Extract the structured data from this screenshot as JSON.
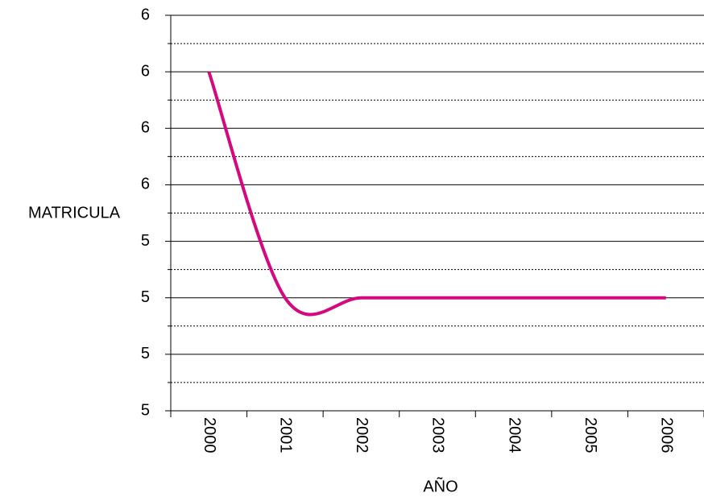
{
  "chart_data": {
    "type": "line",
    "x_label": "AÑO",
    "y_label": "MATRICULA",
    "categories": [
      "2000",
      "2001",
      "2002",
      "2003",
      "2004",
      "2005",
      "2006"
    ],
    "series": [
      {
        "name": "MATRICULA",
        "color": "#d6087f",
        "values": [
          6,
          5,
          5,
          5,
          5,
          5,
          5
        ]
      }
    ],
    "ylim": [
      4.5,
      6.25
    ],
    "yticks": [
      {
        "value": 4.5,
        "label": "5"
      },
      {
        "value": 4.75,
        "label": "5"
      },
      {
        "value": 5,
        "label": "5"
      },
      {
        "value": 5.25,
        "label": "5"
      },
      {
        "value": 5.5,
        "label": "6"
      },
      {
        "value": 5.75,
        "label": "6"
      },
      {
        "value": 6,
        "label": "6"
      },
      {
        "value": 6.25,
        "label": "6"
      }
    ],
    "grid": true,
    "smooth": true
  }
}
